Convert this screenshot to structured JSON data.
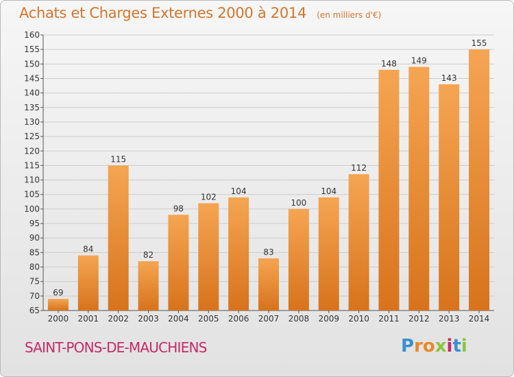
{
  "title": "Achats et Charges Externes 2000 à 2014",
  "subtitle": "(en milliers d'€)",
  "commune": "SAINT-PONS-DE-MAUCHIENS",
  "brand": {
    "text": "Proxiti",
    "letters": [
      {
        "char": "P",
        "color": "#3a8fd0"
      },
      {
        "char": "r",
        "color": "#e8892a"
      },
      {
        "char": "o",
        "color": "#e8892a"
      },
      {
        "char": "x",
        "color": "#8cc63f"
      },
      {
        "char": "i",
        "color": "#c42a6a"
      },
      {
        "char": "t",
        "color": "#3a8fd0"
      },
      {
        "char": "i",
        "color": "#8cc63f"
      }
    ]
  },
  "colors": {
    "bar_top": "#f5a552",
    "bar_bottom": "#d7731c",
    "title": "#d2762c",
    "commune": "#c42a6a",
    "grid": "#cccccc"
  },
  "chart_data": {
    "type": "bar",
    "categories": [
      "2000",
      "2001",
      "2002",
      "2003",
      "2004",
      "2005",
      "2006",
      "2007",
      "2008",
      "2009",
      "2010",
      "2011",
      "2012",
      "2013",
      "2014"
    ],
    "values": [
      69,
      84,
      115,
      82,
      98,
      102,
      104,
      83,
      100,
      104,
      112,
      148,
      149,
      143,
      155
    ],
    "ylim": [
      65,
      160
    ],
    "yticks": [
      65,
      70,
      75,
      80,
      85,
      90,
      95,
      100,
      105,
      110,
      115,
      120,
      125,
      130,
      135,
      140,
      145,
      150,
      155,
      160
    ],
    "grid": true,
    "legend": "none"
  }
}
